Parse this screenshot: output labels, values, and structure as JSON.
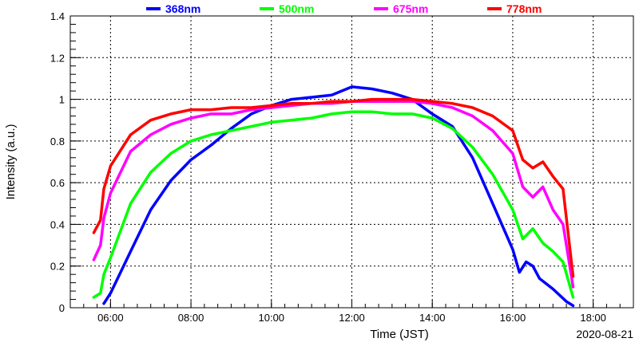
{
  "chart_data": {
    "type": "line",
    "title": "",
    "xlabel": "Time (JST)",
    "ylabel": "Intensity (a.u.)",
    "date": "2020-08-21",
    "xlim": [
      "05:00",
      "19:00"
    ],
    "ylim": [
      0,
      1.4
    ],
    "x_ticks": [
      "06:00",
      "08:00",
      "10:00",
      "12:00",
      "14:00",
      "16:00",
      "18:00"
    ],
    "y_ticks": [
      "0",
      "0.2",
      "0.4",
      "0.6",
      "0.8",
      "1",
      "1.2",
      "1.4"
    ],
    "grid": true,
    "legend_position": "top",
    "series": [
      {
        "name": "368nm",
        "color": "#0000ff",
        "x": [
          "05:50",
          "06:00",
          "06:30",
          "07:00",
          "07:30",
          "08:00",
          "08:30",
          "09:00",
          "09:30",
          "10:00",
          "10:30",
          "11:00",
          "11:30",
          "12:00",
          "12:30",
          "13:00",
          "13:30",
          "14:00",
          "14:30",
          "15:00",
          "15:30",
          "16:00",
          "16:10",
          "16:20",
          "16:30",
          "16:40",
          "17:00",
          "17:20",
          "17:30"
        ],
        "values": [
          0.02,
          0.07,
          0.27,
          0.47,
          0.61,
          0.71,
          0.78,
          0.86,
          0.93,
          0.97,
          1.0,
          1.01,
          1.02,
          1.06,
          1.05,
          1.03,
          1.0,
          0.93,
          0.87,
          0.72,
          0.5,
          0.28,
          0.17,
          0.22,
          0.2,
          0.14,
          0.09,
          0.03,
          0.01
        ]
      },
      {
        "name": "500nm",
        "color": "#00ff00",
        "x": [
          "05:35",
          "05:45",
          "05:50",
          "06:00",
          "06:30",
          "07:00",
          "07:30",
          "08:00",
          "08:30",
          "09:00",
          "09:30",
          "10:00",
          "10:30",
          "11:00",
          "11:30",
          "12:00",
          "12:30",
          "13:00",
          "13:30",
          "14:00",
          "14:30",
          "15:00",
          "15:30",
          "16:00",
          "16:15",
          "16:30",
          "16:45",
          "17:00",
          "17:15",
          "17:30"
        ],
        "values": [
          0.05,
          0.07,
          0.16,
          0.24,
          0.5,
          0.65,
          0.74,
          0.8,
          0.83,
          0.85,
          0.87,
          0.89,
          0.9,
          0.91,
          0.93,
          0.94,
          0.94,
          0.93,
          0.93,
          0.91,
          0.86,
          0.77,
          0.64,
          0.47,
          0.33,
          0.38,
          0.31,
          0.27,
          0.22,
          0.05
        ]
      },
      {
        "name": "675nm",
        "color": "#ff00ff",
        "x": [
          "05:35",
          "05:45",
          "05:50",
          "06:00",
          "06:30",
          "07:00",
          "07:30",
          "08:00",
          "08:30",
          "09:00",
          "09:30",
          "10:00",
          "10:30",
          "11:00",
          "11:30",
          "12:00",
          "12:30",
          "13:00",
          "13:30",
          "14:00",
          "14:30",
          "15:00",
          "15:30",
          "16:00",
          "16:15",
          "16:30",
          "16:45",
          "17:00",
          "17:15",
          "17:30"
        ],
        "values": [
          0.23,
          0.3,
          0.43,
          0.55,
          0.75,
          0.83,
          0.88,
          0.91,
          0.93,
          0.93,
          0.95,
          0.96,
          0.97,
          0.98,
          0.98,
          0.99,
          0.99,
          0.99,
          0.99,
          0.98,
          0.96,
          0.92,
          0.85,
          0.74,
          0.58,
          0.53,
          0.58,
          0.47,
          0.4,
          0.1
        ]
      },
      {
        "name": "778nm",
        "color": "#ff0000",
        "x": [
          "05:35",
          "05:45",
          "05:50",
          "06:00",
          "06:30",
          "07:00",
          "07:30",
          "08:00",
          "08:30",
          "09:00",
          "09:30",
          "10:00",
          "10:30",
          "11:00",
          "11:30",
          "12:00",
          "12:30",
          "13:00",
          "13:30",
          "14:00",
          "14:30",
          "15:00",
          "15:30",
          "16:00",
          "16:15",
          "16:30",
          "16:45",
          "17:00",
          "17:15",
          "17:30"
        ],
        "values": [
          0.36,
          0.42,
          0.57,
          0.68,
          0.83,
          0.9,
          0.93,
          0.95,
          0.95,
          0.96,
          0.96,
          0.97,
          0.98,
          0.98,
          0.99,
          0.99,
          1.0,
          1.0,
          1.0,
          0.99,
          0.98,
          0.96,
          0.92,
          0.85,
          0.71,
          0.67,
          0.7,
          0.63,
          0.57,
          0.15
        ]
      }
    ]
  }
}
